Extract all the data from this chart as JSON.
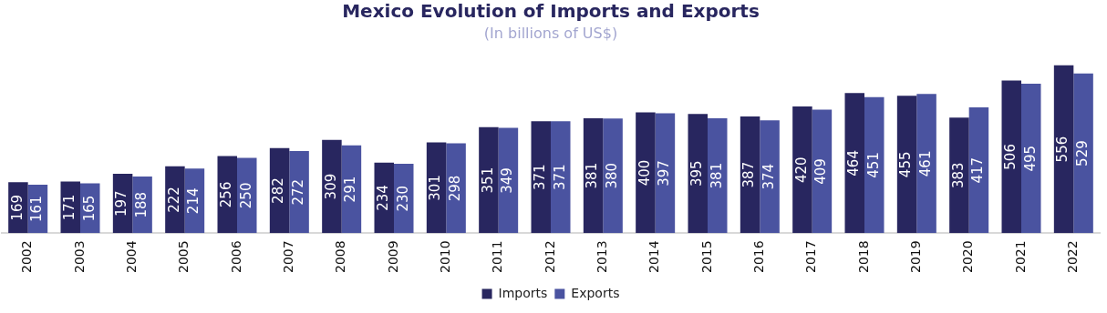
{
  "chart_data": {
    "type": "bar",
    "title": "Mexico Evolution of Imports and Exports",
    "subtitle": "(In billions of US$)",
    "categories": [
      "2002",
      "2003",
      "2004",
      "2005",
      "2006",
      "2007",
      "2008",
      "2009",
      "2010",
      "2011",
      "2012",
      "2013",
      "2014",
      "2015",
      "2016",
      "2017",
      "2018",
      "2019",
      "2020",
      "2021",
      "2022"
    ],
    "series": [
      {
        "name": "Imports",
        "color": "#28265f",
        "values": [
          169,
          171,
          197,
          222,
          256,
          282,
          309,
          234,
          301,
          351,
          371,
          381,
          400,
          395,
          387,
          420,
          464,
          455,
          383,
          506,
          556
        ]
      },
      {
        "name": "Exports",
        "color": "#4a53a0",
        "values": [
          161,
          165,
          188,
          214,
          250,
          272,
          291,
          230,
          298,
          349,
          371,
          380,
          397,
          381,
          374,
          409,
          451,
          461,
          417,
          495,
          529
        ]
      }
    ],
    "data_labels": true,
    "grid": false,
    "legend": "bottom"
  }
}
